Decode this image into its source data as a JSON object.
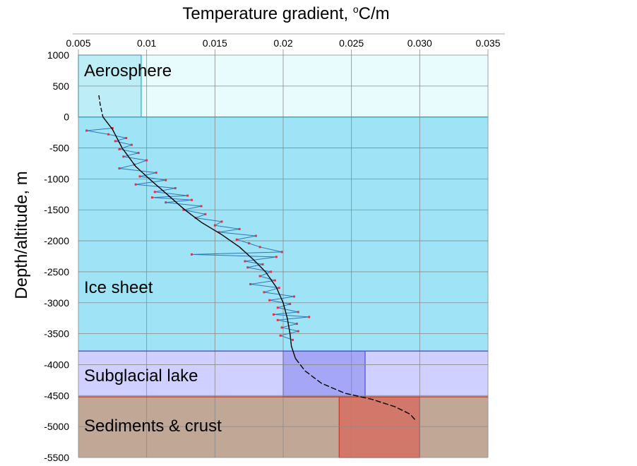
{
  "chart_data": {
    "type": "line",
    "title": "",
    "xlabel": "Temperature gradient, ",
    "xlabel_superscript": "o",
    "xlabel_unit": "C/m",
    "ylabel": "Depth/altitude, m",
    "xlim": [
      0.005,
      0.035
    ],
    "ylim": [
      -5500,
      1000
    ],
    "x_ticks": [
      "0.005",
      "0.01",
      "0.015",
      "0.02",
      "0.025",
      "0.030",
      "0.035"
    ],
    "x_tick_values": [
      0.005,
      0.01,
      0.015,
      0.02,
      0.025,
      0.03,
      0.035
    ],
    "y_ticks": [
      "1000",
      "500",
      "0",
      "-500",
      "-1000",
      "-1500",
      "-2000",
      "-2500",
      "-3000",
      "-3500",
      "-4000",
      "-4500",
      "-5000",
      "-5500"
    ],
    "y_tick_values": [
      1000,
      500,
      0,
      -500,
      -1000,
      -1500,
      -2000,
      -2500,
      -3000,
      -3500,
      -4000,
      -4500,
      -5000,
      -5500
    ],
    "grid": true,
    "layers": [
      {
        "name": "Aerosphere",
        "top": 1000,
        "bottom": 0,
        "fill": "#e8fbfd",
        "edge": "#1ab3c5"
      },
      {
        "name": "Ice sheet",
        "top": 0,
        "bottom": -3780,
        "fill": "#9ee4f6",
        "edge": "#1ab3c5"
      },
      {
        "name": "Subglacial lake",
        "top": -3780,
        "bottom": -4520,
        "fill": "#cfd0ff",
        "edge": "#4f4fd0"
      },
      {
        "name": "Sediments & crust",
        "top": -4520,
        "bottom": -5500,
        "fill": "#c1a796",
        "edge": "#c0392b"
      }
    ],
    "ranges": [
      {
        "layer": "Aerosphere",
        "x0": 0.005,
        "x1": 0.0096,
        "fill": "#bdeef8",
        "edge": "#1ab3c5"
      },
      {
        "layer": "Subglacial lake",
        "x0": 0.02,
        "x1": 0.026,
        "fill": "#a5a6f5",
        "edge": "#4f4fd0"
      },
      {
        "layer": "Sediments & crust",
        "x0": 0.0241,
        "x1": 0.03,
        "fill": "#d2786a",
        "edge": "#c0392b"
      }
    ],
    "series": [
      {
        "style": "measured",
        "color": "#2d77b8",
        "marker_color": "#e0304a",
        "points": [
          [
            0.0075,
            -180
          ],
          [
            0.0056,
            -220
          ],
          [
            0.0072,
            -280
          ],
          [
            0.0085,
            -340
          ],
          [
            0.0077,
            -390
          ],
          [
            0.0089,
            -450
          ],
          [
            0.008,
            -520
          ],
          [
            0.0094,
            -580
          ],
          [
            0.0083,
            -640
          ],
          [
            0.01,
            -700
          ],
          [
            0.0091,
            -770
          ],
          [
            0.008,
            -830
          ],
          [
            0.0107,
            -900
          ],
          [
            0.0095,
            -960
          ],
          [
            0.0114,
            -1020
          ],
          [
            0.0092,
            -1090
          ],
          [
            0.0121,
            -1150
          ],
          [
            0.0106,
            -1210
          ],
          [
            0.013,
            -1270
          ],
          [
            0.0104,
            -1300
          ],
          [
            0.0133,
            -1340
          ],
          [
            0.0114,
            -1380
          ],
          [
            0.014,
            -1440
          ],
          [
            0.0127,
            -1500
          ],
          [
            0.0143,
            -1570
          ],
          [
            0.0136,
            -1630
          ],
          [
            0.0155,
            -1690
          ],
          [
            0.015,
            -1750
          ],
          [
            0.0168,
            -1810
          ],
          [
            0.0153,
            -1860
          ],
          [
            0.018,
            -1920
          ],
          [
            0.0166,
            -1980
          ],
          [
            0.0175,
            -2040
          ],
          [
            0.0183,
            -2100
          ],
          [
            0.0199,
            -2180
          ],
          [
            0.0133,
            -2220
          ],
          [
            0.0195,
            -2260
          ],
          [
            0.0172,
            -2330
          ],
          [
            0.0185,
            -2380
          ],
          [
            0.0174,
            -2430
          ],
          [
            0.0191,
            -2500
          ],
          [
            0.0183,
            -2570
          ],
          [
            0.0194,
            -2640
          ],
          [
            0.0176,
            -2700
          ],
          [
            0.0197,
            -2760
          ],
          [
            0.0186,
            -2830
          ],
          [
            0.0208,
            -2900
          ],
          [
            0.019,
            -2960
          ],
          [
            0.0205,
            -3020
          ],
          [
            0.0196,
            -3080
          ],
          [
            0.0211,
            -3150
          ],
          [
            0.0193,
            -3190
          ],
          [
            0.0219,
            -3230
          ],
          [
            0.0196,
            -3280
          ],
          [
            0.021,
            -3340
          ],
          [
            0.0199,
            -3400
          ],
          [
            0.0211,
            -3460
          ],
          [
            0.0198,
            -3530
          ],
          [
            0.0207,
            -3600
          ]
        ]
      },
      {
        "style": "model",
        "color": "#000000",
        "points": [
          [
            0.0065,
            350
          ],
          [
            0.0066,
            200
          ],
          [
            0.0068,
            0
          ],
          [
            0.0075,
            -200
          ],
          [
            0.0082,
            -500
          ],
          [
            0.0092,
            -800
          ],
          [
            0.0102,
            -1000
          ],
          [
            0.0115,
            -1250
          ],
          [
            0.0128,
            -1500
          ],
          [
            0.014,
            -1700
          ],
          [
            0.0155,
            -1900
          ],
          [
            0.0168,
            -2100
          ],
          [
            0.0178,
            -2300
          ],
          [
            0.0187,
            -2500
          ],
          [
            0.0195,
            -2750
          ],
          [
            0.02,
            -3000
          ],
          [
            0.0203,
            -3250
          ],
          [
            0.0205,
            -3500
          ],
          [
            0.0206,
            -3700
          ],
          [
            0.0209,
            -3900
          ],
          [
            0.0216,
            -4100
          ],
          [
            0.0228,
            -4300
          ],
          [
            0.0245,
            -4460
          ],
          [
            0.0265,
            -4560
          ],
          [
            0.0282,
            -4680
          ],
          [
            0.0293,
            -4800
          ],
          [
            0.0297,
            -4900
          ]
        ]
      }
    ]
  }
}
